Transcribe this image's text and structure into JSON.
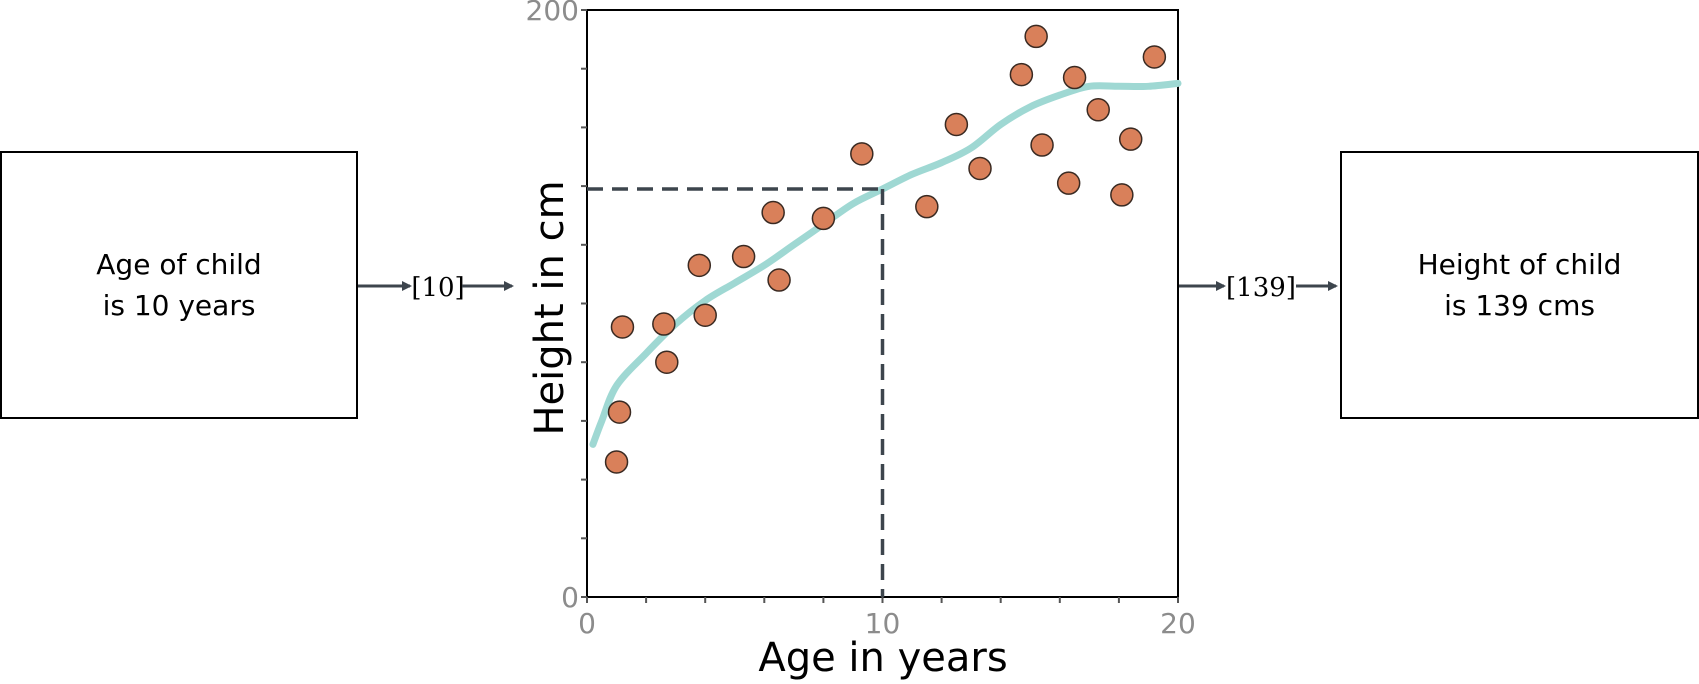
{
  "input_box": {
    "line1": "Age of child",
    "line2": "is 10 years"
  },
  "output_box": {
    "line1": "Height of child",
    "line2": "is 139 cms"
  },
  "input_value_label": "[10]",
  "output_value_label": "[139]",
  "colors": {
    "points": "#d9805a",
    "curve": "#9fd8d3",
    "guide": "#3d454d",
    "arrow": "#3d454d",
    "tick_text": "#8c8c8c"
  },
  "chart_data": {
    "type": "scatter",
    "xlabel": "Age in years",
    "ylabel": "Height in cm",
    "xlim": [
      0,
      20
    ],
    "ylim": [
      0,
      200
    ],
    "x_ticks": [
      0,
      10,
      20
    ],
    "y_ticks": [
      0,
      200
    ],
    "points": [
      {
        "x": 1.0,
        "y": 46
      },
      {
        "x": 1.1,
        "y": 63
      },
      {
        "x": 1.2,
        "y": 92
      },
      {
        "x": 2.6,
        "y": 93
      },
      {
        "x": 2.7,
        "y": 80
      },
      {
        "x": 3.8,
        "y": 113
      },
      {
        "x": 4.0,
        "y": 96
      },
      {
        "x": 5.3,
        "y": 116
      },
      {
        "x": 6.3,
        "y": 131
      },
      {
        "x": 6.5,
        "y": 108
      },
      {
        "x": 8.0,
        "y": 129
      },
      {
        "x": 9.3,
        "y": 151
      },
      {
        "x": 11.5,
        "y": 133
      },
      {
        "x": 12.5,
        "y": 161
      },
      {
        "x": 13.3,
        "y": 146
      },
      {
        "x": 14.7,
        "y": 178
      },
      {
        "x": 15.2,
        "y": 191
      },
      {
        "x": 15.4,
        "y": 154
      },
      {
        "x": 16.3,
        "y": 141
      },
      {
        "x": 16.5,
        "y": 177
      },
      {
        "x": 17.3,
        "y": 166
      },
      {
        "x": 18.1,
        "y": 137
      },
      {
        "x": 18.4,
        "y": 156
      },
      {
        "x": 19.2,
        "y": 184
      }
    ],
    "fit_curve": [
      {
        "x": 0.2,
        "y": 52
      },
      {
        "x": 0.5,
        "y": 60
      },
      {
        "x": 1.0,
        "y": 72
      },
      {
        "x": 2.0,
        "y": 83
      },
      {
        "x": 3.0,
        "y": 93
      },
      {
        "x": 4.0,
        "y": 101
      },
      {
        "x": 5.0,
        "y": 107
      },
      {
        "x": 6.0,
        "y": 113
      },
      {
        "x": 7.0,
        "y": 120
      },
      {
        "x": 8.0,
        "y": 127
      },
      {
        "x": 9.0,
        "y": 134
      },
      {
        "x": 10.0,
        "y": 139
      },
      {
        "x": 11.0,
        "y": 144
      },
      {
        "x": 12.0,
        "y": 148
      },
      {
        "x": 13.0,
        "y": 153
      },
      {
        "x": 14.0,
        "y": 161
      },
      {
        "x": 15.0,
        "y": 167
      },
      {
        "x": 16.0,
        "y": 171
      },
      {
        "x": 17.0,
        "y": 174
      },
      {
        "x": 18.0,
        "y": 174
      },
      {
        "x": 19.0,
        "y": 174
      },
      {
        "x": 20.0,
        "y": 175
      }
    ],
    "highlight": {
      "x": 10,
      "y": 139
    }
  }
}
